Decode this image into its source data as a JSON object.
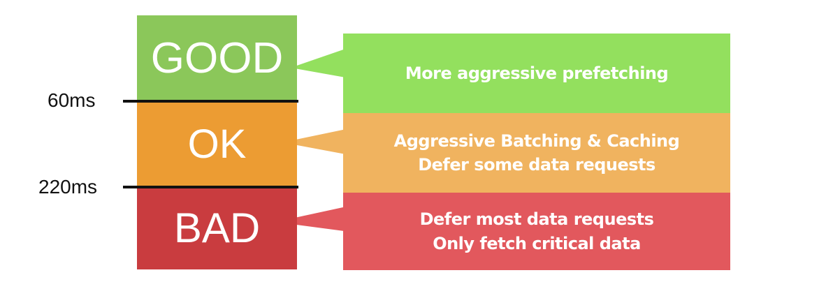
{
  "diagram": {
    "colors": {
      "good_tier": "#8bc75a",
      "ok_tier": "#ec9c33",
      "bad_tier": "#c93c3f",
      "good_advice": "#93e05e",
      "ok_advice": "#f0b35f",
      "bad_advice": "#e2585d",
      "text": "#ffffff",
      "threshold": "#111111"
    },
    "tiers": [
      {
        "label": "GOOD",
        "advice": [
          "More aggressive prefetching"
        ]
      },
      {
        "label": "OK",
        "advice": [
          "Aggressive Batching & Caching",
          "Defer some data requests"
        ]
      },
      {
        "label": "BAD",
        "advice": [
          "Defer most data requests",
          "Only fetch critical data"
        ]
      }
    ],
    "thresholds": [
      "60ms",
      "220ms"
    ]
  }
}
